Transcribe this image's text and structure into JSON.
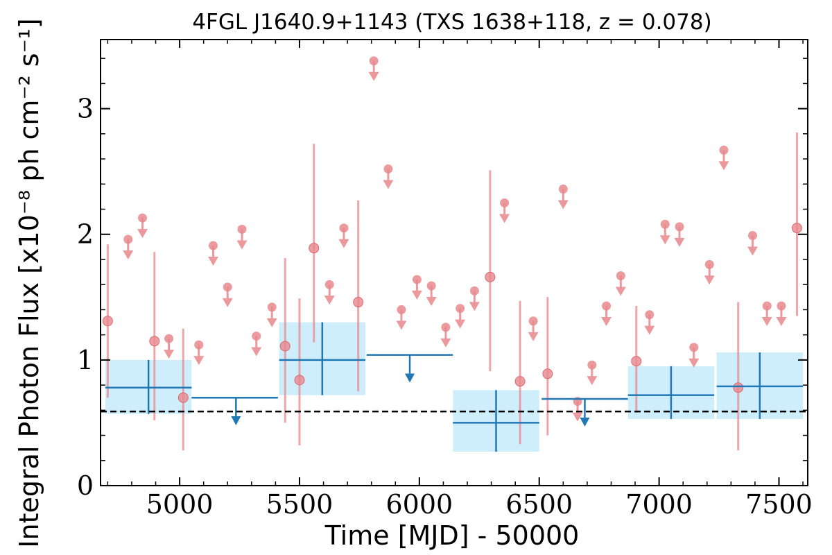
{
  "chart_data": {
    "type": "scatter",
    "title": "4FGL J1640.9+1143 (TXS 1638+118, z = 0.078)",
    "xlabel": "Time [MJD] - 50000",
    "ylabel": "Integral Photon Flux [x10⁻⁸ ph cm⁻² s⁻¹]",
    "xlim": [
      4670,
      7620
    ],
    "ylim": [
      0,
      3.55
    ],
    "x_ticks": [
      5000,
      5500,
      6000,
      6500,
      7000,
      7500
    ],
    "y_ticks": [
      0,
      1,
      2,
      3
    ],
    "x_tick_labels": [
      "5000",
      "5500",
      "6000",
      "6500",
      "7000",
      "7500"
    ],
    "y_tick_labels": [
      "0",
      "1",
      "2",
      "3"
    ],
    "reference_line": 0.59,
    "colors": {
      "monthly": "#e8888d",
      "yearly": "#1f77b4",
      "yearly_band": "#cfeefc",
      "reference": "#000000"
    },
    "monthly_detections": [
      {
        "x": 4700,
        "y": 1.31,
        "lo": 0.7,
        "hi": 1.92
      },
      {
        "x": 4895,
        "y": 1.15,
        "lo": 0.52,
        "hi": 1.86
      },
      {
        "x": 5015,
        "y": 0.7,
        "lo": 0.28,
        "hi": 1.25
      },
      {
        "x": 5440,
        "y": 1.11,
        "lo": 0.5,
        "hi": 1.81
      },
      {
        "x": 5500,
        "y": 0.84,
        "lo": 0.32,
        "hi": 1.49
      },
      {
        "x": 5560,
        "y": 1.89,
        "lo": 1.14,
        "hi": 2.72
      },
      {
        "x": 5745,
        "y": 1.46,
        "lo": 0.75,
        "hi": 2.27
      },
      {
        "x": 6295,
        "y": 1.66,
        "lo": 0.91,
        "hi": 2.51
      },
      {
        "x": 6420,
        "y": 0.83,
        "lo": 0.33,
        "hi": 1.47
      },
      {
        "x": 6535,
        "y": 0.89,
        "lo": 0.4,
        "hi": 1.5
      },
      {
        "x": 6905,
        "y": 0.99,
        "lo": 0.58,
        "hi": 1.43
      },
      {
        "x": 7330,
        "y": 0.78,
        "lo": 0.28,
        "hi": 1.46
      },
      {
        "x": 7575,
        "y": 2.05,
        "lo": 1.35,
        "hi": 2.81
      }
    ],
    "monthly_upper_limits": [
      {
        "x": 4785,
        "y": 1.96
      },
      {
        "x": 4845,
        "y": 2.13
      },
      {
        "x": 4955,
        "y": 1.17
      },
      {
        "x": 5080,
        "y": 1.12
      },
      {
        "x": 5140,
        "y": 1.91
      },
      {
        "x": 5200,
        "y": 1.58
      },
      {
        "x": 5260,
        "y": 2.04
      },
      {
        "x": 5320,
        "y": 1.19
      },
      {
        "x": 5385,
        "y": 1.42
      },
      {
        "x": 5625,
        "y": 1.6
      },
      {
        "x": 5685,
        "y": 2.05
      },
      {
        "x": 5810,
        "y": 3.38
      },
      {
        "x": 5870,
        "y": 2.52
      },
      {
        "x": 5925,
        "y": 1.4
      },
      {
        "x": 5990,
        "y": 1.64
      },
      {
        "x": 6050,
        "y": 1.59
      },
      {
        "x": 6110,
        "y": 1.26
      },
      {
        "x": 6170,
        "y": 1.41
      },
      {
        "x": 6230,
        "y": 1.55
      },
      {
        "x": 6355,
        "y": 2.25
      },
      {
        "x": 6475,
        "y": 1.31
      },
      {
        "x": 6600,
        "y": 2.36
      },
      {
        "x": 6660,
        "y": 0.67
      },
      {
        "x": 6720,
        "y": 0.96
      },
      {
        "x": 6780,
        "y": 1.43
      },
      {
        "x": 6840,
        "y": 1.67
      },
      {
        "x": 6960,
        "y": 1.36
      },
      {
        "x": 7025,
        "y": 2.08
      },
      {
        "x": 7085,
        "y": 2.06
      },
      {
        "x": 7145,
        "y": 1.1
      },
      {
        "x": 7210,
        "y": 1.76
      },
      {
        "x": 7270,
        "y": 2.67
      },
      {
        "x": 7390,
        "y": 1.99
      },
      {
        "x": 7450,
        "y": 1.43
      },
      {
        "x": 7510,
        "y": 1.43
      }
    ],
    "yearly_detections": [
      {
        "x": 4870,
        "x0": 4690,
        "x1": 5050,
        "y": 0.78,
        "lo": 0.57,
        "hi": 1.0
      },
      {
        "x": 5595,
        "x0": 5415,
        "x1": 5775,
        "y": 1.0,
        "lo": 0.72,
        "hi": 1.3
      },
      {
        "x": 6320,
        "x0": 6140,
        "x1": 6500,
        "y": 0.5,
        "lo": 0.27,
        "hi": 0.76
      },
      {
        "x": 7050,
        "x0": 6870,
        "x1": 7230,
        "y": 0.72,
        "lo": 0.53,
        "hi": 0.95
      },
      {
        "x": 7420,
        "x0": 7240,
        "x1": 7600,
        "y": 0.79,
        "lo": 0.53,
        "hi": 1.06
      }
    ],
    "yearly_upper_limits": [
      {
        "x": 5235,
        "x0": 5050,
        "x1": 5410,
        "y": 0.7
      },
      {
        "x": 5960,
        "x0": 5780,
        "x1": 6140,
        "y": 1.04
      },
      {
        "x": 6690,
        "x0": 6510,
        "x1": 6870,
        "y": 0.69
      }
    ]
  }
}
